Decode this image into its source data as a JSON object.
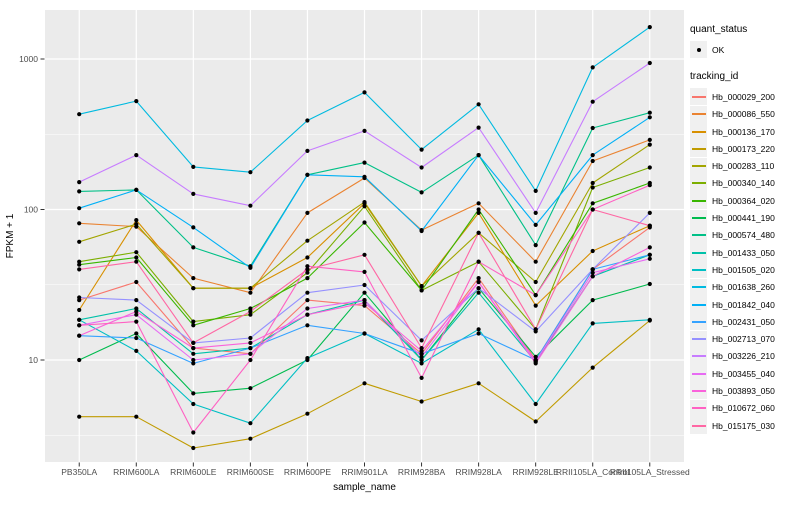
{
  "figure": {
    "panel_background": "#EBEBEB",
    "gridline_color": "#FFFFFF",
    "point_color": "#000000",
    "tick_label_color": "#4D4D4D",
    "axis_title_color": "#000000",
    "legend_key_background": "#F0F0F0"
  },
  "legend": {
    "quant_status_title": "quant_status",
    "quant_status_items": [
      {
        "label": "OK",
        "marker": "black-point-icon"
      }
    ],
    "tracking_id_title": "tracking_id"
  },
  "chart_data": {
    "type": "line",
    "title": "",
    "xlabel": "sample_name",
    "ylabel": "FPKM + 1",
    "y_scale": "log10",
    "grid": true,
    "legend_position": "right",
    "ylim": [
      2,
      2200
    ],
    "y_ticks": [
      10,
      100,
      1000
    ],
    "y_tick_labels": [
      "10",
      "100",
      "1000"
    ],
    "y_minor_ticks": [
      3.162,
      31.62,
      316.2
    ],
    "categories": [
      "PB350LA",
      "RRIM600LA",
      "RRIM600LE",
      "RRIM600SE",
      "RRIM600PE",
      "RRIM901LA",
      "RRIM928BA",
      "RRIM928LA",
      "RRIM928LE",
      "RRII105LA_Control",
      "RRII105LA_Stressed"
    ],
    "series": [
      {
        "name": "Hb_000029_200",
        "color": "#F8766D",
        "values": [
          25,
          33,
          12,
          11,
          25,
          23,
          11,
          35,
          10,
          40,
          76
        ]
      },
      {
        "name": "Hb_000086_550",
        "color": "#EA8331",
        "values": [
          81,
          77,
          35,
          28,
          95,
          162,
          73,
          110,
          45,
          210,
          290
        ]
      },
      {
        "name": "Hb_000136_170",
        "color": "#D89000",
        "values": [
          21.5,
          85,
          30,
          30,
          48,
          110,
          31,
          95,
          23,
          53,
          78
        ]
      },
      {
        "name": "Hb_000173_220",
        "color": "#C09B00",
        "values": [
          4.2,
          4.2,
          2.6,
          3.0,
          4.4,
          7.0,
          5.3,
          7.0,
          3.9,
          8.9,
          18.3
        ]
      },
      {
        "name": "Hb_000283_110",
        "color": "#A3A500",
        "values": [
          61,
          80,
          30,
          30,
          62,
          112,
          31,
          70,
          33,
          150,
          270
        ]
      },
      {
        "name": "Hb_000340_140",
        "color": "#7CAE00",
        "values": [
          45,
          52,
          18,
          20,
          38,
          105,
          29,
          45,
          16,
          140,
          190
        ]
      },
      {
        "name": "Hb_000364_020",
        "color": "#39B600",
        "values": [
          43,
          48,
          17,
          22,
          35,
          82,
          29,
          100,
          27,
          110,
          150
        ]
      },
      {
        "name": "Hb_000441_190",
        "color": "#00BB4E",
        "values": [
          10,
          15,
          6,
          6.5,
          10,
          28,
          10,
          30,
          10.5,
          25,
          32
        ]
      },
      {
        "name": "Hb_000574_480",
        "color": "#00C087",
        "values": [
          132,
          135,
          56,
          42,
          170,
          205,
          130,
          230,
          58,
          348,
          440
        ]
      },
      {
        "name": "Hb_001433_050",
        "color": "#00C1A9",
        "values": [
          18.5,
          22,
          11,
          12,
          20,
          25,
          10,
          28,
          9.7,
          36,
          50
        ]
      },
      {
        "name": "Hb_001505_020",
        "color": "#00BFC4",
        "values": [
          18.5,
          11.5,
          5.1,
          3.8,
          10.3,
          15,
          9.5,
          16,
          5.1,
          17.5,
          18.5
        ]
      },
      {
        "name": "Hb_001638_260",
        "color": "#00BAE0",
        "values": [
          430,
          525,
          192,
          177,
          390,
          600,
          250,
          500,
          133,
          880,
          1630
        ]
      },
      {
        "name": "Hb_001842_040",
        "color": "#00B0F6",
        "values": [
          102,
          135,
          76,
          41,
          170,
          165,
          72,
          230,
          79,
          230,
          410
        ]
      },
      {
        "name": "Hb_002431_050",
        "color": "#35A2FF",
        "values": [
          14.5,
          14,
          9.5,
          12,
          17,
          15,
          11,
          15,
          10,
          40,
          50
        ]
      },
      {
        "name": "Hb_002713_070",
        "color": "#9590FF",
        "values": [
          26,
          25,
          13,
          14,
          28,
          31.5,
          13.5,
          30,
          15.5,
          40,
          95
        ]
      },
      {
        "name": "Hb_003226_210",
        "color": "#C77CFF",
        "values": [
          152,
          230,
          127,
          106,
          245,
          333,
          190,
          350,
          95,
          520,
          940
        ]
      },
      {
        "name": "Hb_003455_040",
        "color": "#E76BF3",
        "values": [
          17,
          20,
          10,
          11,
          22,
          25,
          10.5,
          33,
          9.8,
          38,
          47
        ]
      },
      {
        "name": "Hb_003893_050",
        "color": "#FA62DB",
        "values": [
          14.5,
          21,
          12,
          13,
          20,
          24,
          11.5,
          33,
          9.5,
          36,
          56
        ]
      },
      {
        "name": "Hb_010672_060",
        "color": "#FF61C3",
        "values": [
          17,
          18,
          3.3,
          10,
          42,
          38.5,
          7.6,
          45,
          27,
          100,
          145
        ]
      },
      {
        "name": "Hb_015175_030",
        "color": "#FF67A4",
        "values": [
          40,
          45,
          13,
          21,
          40,
          50,
          12,
          70,
          16,
          100,
          78
        ]
      }
    ]
  }
}
